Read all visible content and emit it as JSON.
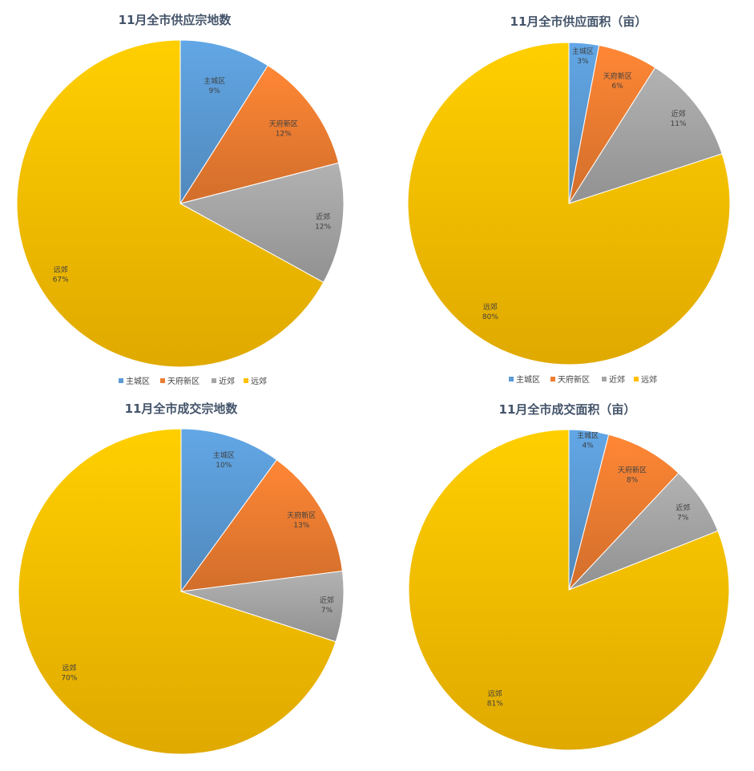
{
  "colors": {
    "主城区": "#5B9BD5",
    "天府新区": "#ED7D31",
    "近郊": "#A5A5A5",
    "远郊": "#FFC000"
  },
  "chart_data": [
    {
      "type": "pie",
      "title": "11月全市供应宗地数",
      "categories": [
        "主城区",
        "天府新区",
        "近郊",
        "远郊"
      ],
      "values": [
        9,
        12,
        12,
        67
      ],
      "labels": [
        "9%",
        "12%",
        "12%",
        "67%"
      ],
      "legend": [
        "主城区",
        "天府新区",
        "近郊",
        "远郊"
      ]
    },
    {
      "type": "pie",
      "title": "11月全市供应面积（亩）",
      "categories": [
        "主城区",
        "天府新区",
        "近郊",
        "远郊"
      ],
      "values": [
        3,
        6,
        11,
        80
      ],
      "labels": [
        "3%",
        "6%",
        "11%",
        "80%"
      ],
      "legend": [
        "主城区",
        "天府新区",
        "近郊",
        "远郊"
      ]
    },
    {
      "type": "pie",
      "title": "11月全市成交宗地数",
      "categories": [
        "主城区",
        "天府新区",
        "近郊",
        "远郊"
      ],
      "values": [
        10,
        13,
        7,
        70
      ],
      "labels": [
        "10%",
        "13%",
        "7%",
        "70%"
      ]
    },
    {
      "type": "pie",
      "title": "11月全市成交面积（亩）",
      "categories": [
        "主城区",
        "天府新区",
        "近郊",
        "远郊"
      ],
      "values": [
        4,
        8,
        7,
        81
      ],
      "labels": [
        "4%",
        "8%",
        "7%",
        "81%"
      ]
    }
  ]
}
